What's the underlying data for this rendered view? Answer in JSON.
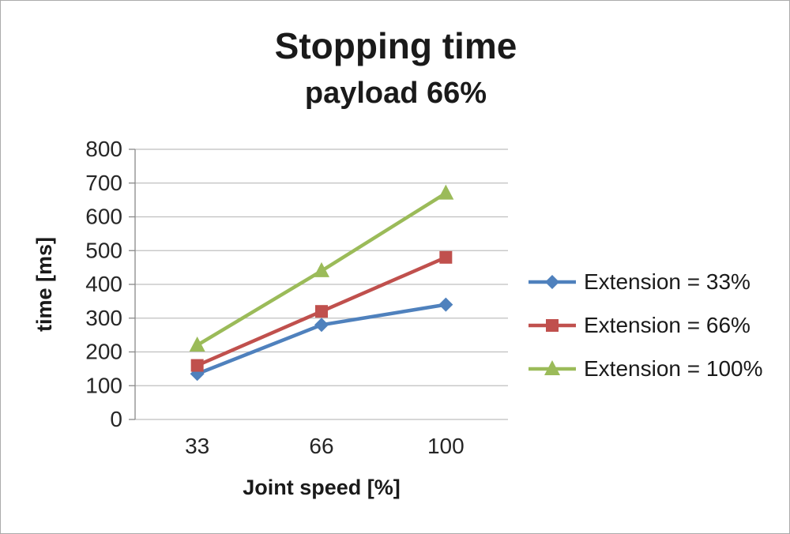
{
  "title": "Stopping time",
  "subtitle": "payload 66%",
  "chart_data": {
    "type": "line",
    "title": "Stopping time",
    "subtitle": "payload 66%",
    "categories": [
      "33",
      "66",
      "100"
    ],
    "series": [
      {
        "name": "Extension = 33%",
        "values": [
          135,
          280,
          340
        ],
        "color": "#4F81BD",
        "marker": "diamond"
      },
      {
        "name": "Extension = 66%",
        "values": [
          160,
          320,
          480
        ],
        "color": "#C0504D",
        "marker": "square"
      },
      {
        "name": "Extension = 100%",
        "values": [
          220,
          440,
          670
        ],
        "color": "#9BBB59",
        "marker": "triangle"
      }
    ],
    "xlabel": "Joint speed [%]",
    "ylabel": "time [ms]",
    "ylim": [
      0,
      800
    ],
    "ytick_step": 100,
    "grid": true,
    "legend_position": "right",
    "colors": {
      "gridline": "#bfbfbf",
      "axis": "#898989",
      "tick_text": "#262626"
    }
  }
}
